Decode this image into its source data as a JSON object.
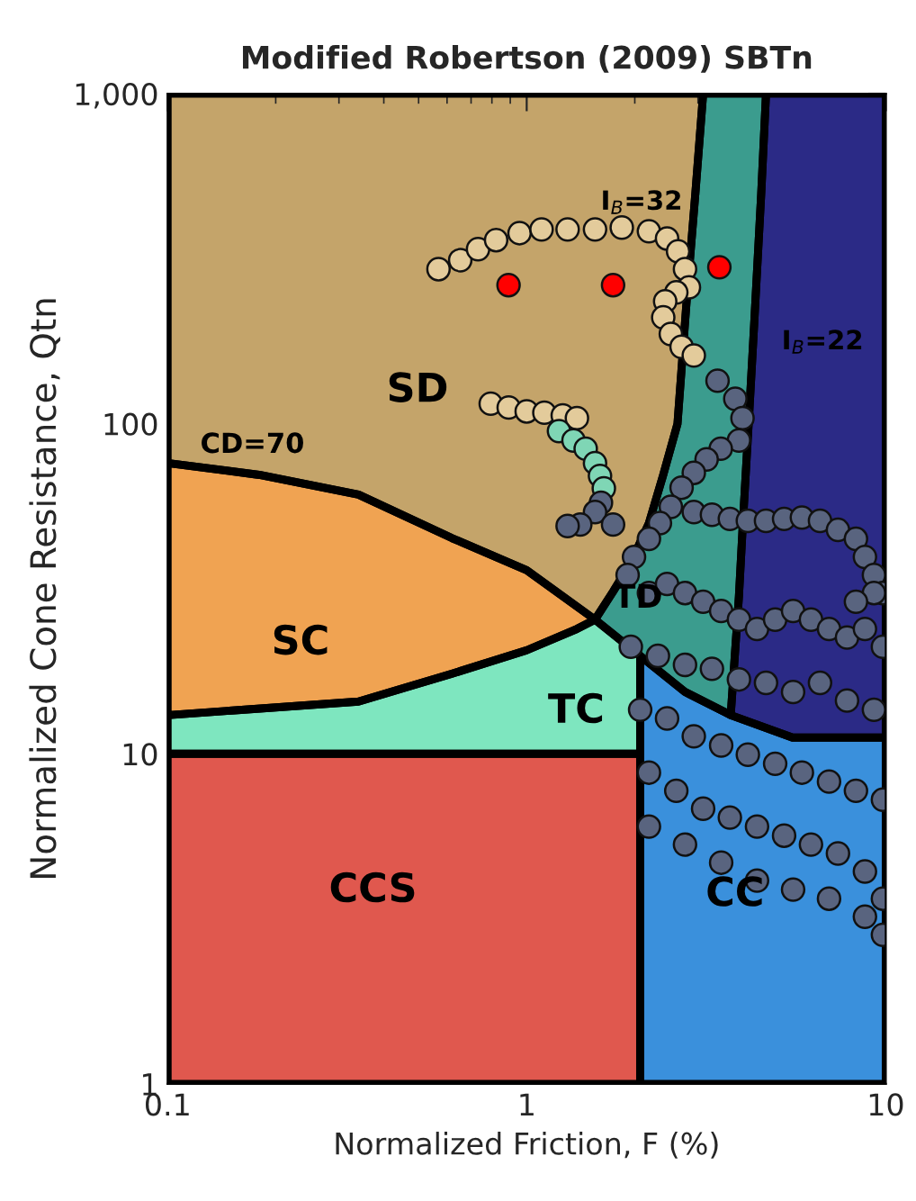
{
  "chart_data": {
    "type": "scatter",
    "title": "Modified Robertson (2009) SBTn",
    "xlabel": "Normalized Friction, F (%)",
    "ylabel": "Normalized Cone Resistance, Qtn",
    "log": "xy",
    "xlim": [
      0.1,
      10
    ],
    "ylim": [
      1,
      1000
    ],
    "xticks": [
      0.1,
      1,
      10
    ],
    "yticks": [
      1,
      10,
      100,
      {
        "value": 1000,
        "label": "1,000"
      }
    ],
    "grid": false,
    "legend": false,
    "series": [
      {
        "type": "area",
        "color": "#c4a46a",
        "x": [
          0.1,
          0.1,
          0.18,
          0.34,
          0.62,
          1,
          1.55,
          1.74,
          1.95,
          2.19,
          2.4,
          2.63,
          2.8,
          2.95,
          3.1
        ],
        "values": [
          1000,
          76,
          70,
          61,
          45,
          36,
          25.5,
          31,
          38,
          50,
          70,
          100,
          250,
          500,
          1000
        ]
      },
      {
        "type": "area",
        "color": "#f0a352",
        "x": [
          0.1,
          0.18,
          0.34,
          0.62,
          1,
          1.55,
          1.38,
          1,
          0.62,
          0.34,
          0.1
        ],
        "values": [
          76,
          70,
          61,
          45,
          36,
          25.5,
          23.9,
          20.6,
          17.5,
          14.4,
          13.1
        ]
      },
      {
        "type": "area",
        "color": "#7ee6bf",
        "x": [
          0.1,
          0.34,
          0.62,
          1,
          1.38,
          1.55,
          2.07,
          2.07,
          0.1
        ],
        "values": [
          13.1,
          14.4,
          17.5,
          20.6,
          23.9,
          25.5,
          19.8,
          10,
          10
        ]
      },
      {
        "type": "area",
        "color": "#3b9c8e",
        "x": [
          3.1,
          2.95,
          2.8,
          2.63,
          2.4,
          2.19,
          1.95,
          1.74,
          1.55,
          2.76,
          3.7,
          3.8,
          3.9,
          4.0,
          4.15,
          4.3,
          4.5,
          4.64
        ],
        "values": [
          1000,
          500,
          250,
          100,
          70,
          50,
          38,
          31,
          25.5,
          15.4,
          13.1,
          20,
          30,
          50,
          100,
          200,
          500,
          1000
        ]
      },
      {
        "type": "area",
        "color": "#e0584e",
        "x": [
          0.1,
          0.1,
          2.07,
          2.07
        ],
        "values": [
          1,
          10,
          10,
          1
        ]
      },
      {
        "type": "area",
        "color": "#3a90dc",
        "x": [
          2.07,
          2.07,
          2.76,
          3.7,
          5.5,
          10,
          10
        ],
        "values": [
          1,
          19.8,
          15.4,
          13.1,
          11.2,
          11.2,
          1
        ]
      },
      {
        "type": "area",
        "color": "#2b2a86",
        "x": [
          4.64,
          4.5,
          4.3,
          4.15,
          4.0,
          3.9,
          3.8,
          3.7,
          5.5,
          10,
          10
        ],
        "values": [
          1000,
          500,
          200,
          100,
          50,
          30,
          20,
          13.1,
          11.2,
          11.2,
          1000
        ]
      },
      {
        "marker": "circle",
        "color": "#e3cb9b",
        "x": [
          0.568,
          0.653,
          0.732,
          0.822,
          0.955,
          1.1,
          1.3,
          1.55,
          1.84,
          2.19,
          2.46,
          2.64,
          2.76,
          2.83,
          2.61,
          2.43,
          2.4,
          2.52,
          2.7,
          2.92,
          0.794,
          0.891,
          1.0,
          1.12,
          1.26,
          1.38
        ],
        "values": [
          294,
          313,
          338,
          360,
          378,
          388,
          388,
          388,
          393,
          383,
          364,
          333,
          294,
          259,
          250,
          235,
          210,
          187,
          171,
          161,
          115,
          112,
          109,
          108,
          106,
          104
        ]
      },
      {
        "marker": "circle",
        "color": "#7fd6b5",
        "x": [
          1.23,
          1.35,
          1.46,
          1.55,
          1.6,
          1.64
        ],
        "values": [
          95,
          89,
          84,
          76,
          69.5,
          63.7
        ]
      },
      {
        "marker": "circle",
        "color": "#59647f",
        "x": [
          1.61,
          1.55,
          1.41,
          1.3,
          1.74,
          3.4,
          3.81,
          3.99,
          3.9,
          3.47,
          3.17,
          2.92,
          2.7,
          2.52,
          2.35,
          2.19,
          1.99,
          1.91,
          2.92,
          3.28,
          3.68,
          4.13,
          4.64,
          5.21,
          5.84,
          6.56,
          7.36,
          8.26,
          8.75,
          9.27,
          9.82,
          9.27,
          8.26,
          2.19,
          2.46,
          2.76,
          3.1,
          3.48,
          3.9,
          4.38,
          4.92,
          5.52,
          6.19,
          6.95,
          7.8,
          8.75,
          9.82,
          1.95,
          2.32,
          2.76,
          3.28,
          3.9,
          4.64,
          5.52,
          6.56,
          7.8,
          9.27,
          2.07,
          2.46,
          2.92,
          3.48,
          4.13,
          4.92,
          5.84,
          6.95,
          8.26,
          9.82,
          2.19,
          2.61,
          3.1,
          3.68,
          4.38,
          5.21,
          6.19,
          7.36,
          8.75,
          9.82,
          2.19,
          2.76,
          3.48,
          4.38,
          5.52,
          6.95,
          8.75,
          9.82
        ],
        "values": [
          57.6,
          54,
          49.5,
          49,
          49.5,
          135,
          119,
          104,
          89,
          84,
          78,
          71,
          64,
          56,
          50,
          44.8,
          39.5,
          34.8,
          54,
          53,
          51.5,
          50.8,
          50.8,
          51.5,
          52,
          50.8,
          47.7,
          44.8,
          39.5,
          34.8,
          30.7,
          30.7,
          28.9,
          30.7,
          32.7,
          30.7,
          28.9,
          27.1,
          25.5,
          23.9,
          25.5,
          27.1,
          25.5,
          23.9,
          22.5,
          23.9,
          21.1,
          21.1,
          19.8,
          18.6,
          18.1,
          16.8,
          16.4,
          15.4,
          16.4,
          14.5,
          13.6,
          13.6,
          12.8,
          11.3,
          10.6,
          9.94,
          9.33,
          8.77,
          8.24,
          7.73,
          7.26,
          8.77,
          7.73,
          6.82,
          6.41,
          6.02,
          5.65,
          5.31,
          4.99,
          4.4,
          3.64,
          6.02,
          5.31,
          4.68,
          4.13,
          3.88,
          3.64,
          3.21,
          2.83
        ]
      },
      {
        "marker": "circle",
        "color": "#ff0000",
        "x": [
          0.89,
          1.74,
          3.44
        ],
        "values": [
          263,
          263,
          298
        ]
      }
    ],
    "annotations": [
      "SD",
      "SC",
      "TC",
      "TD",
      "CCS",
      "CC",
      "CD=70",
      "I$_{B}$=32",
      "I$_{B}$=22"
    ]
  }
}
